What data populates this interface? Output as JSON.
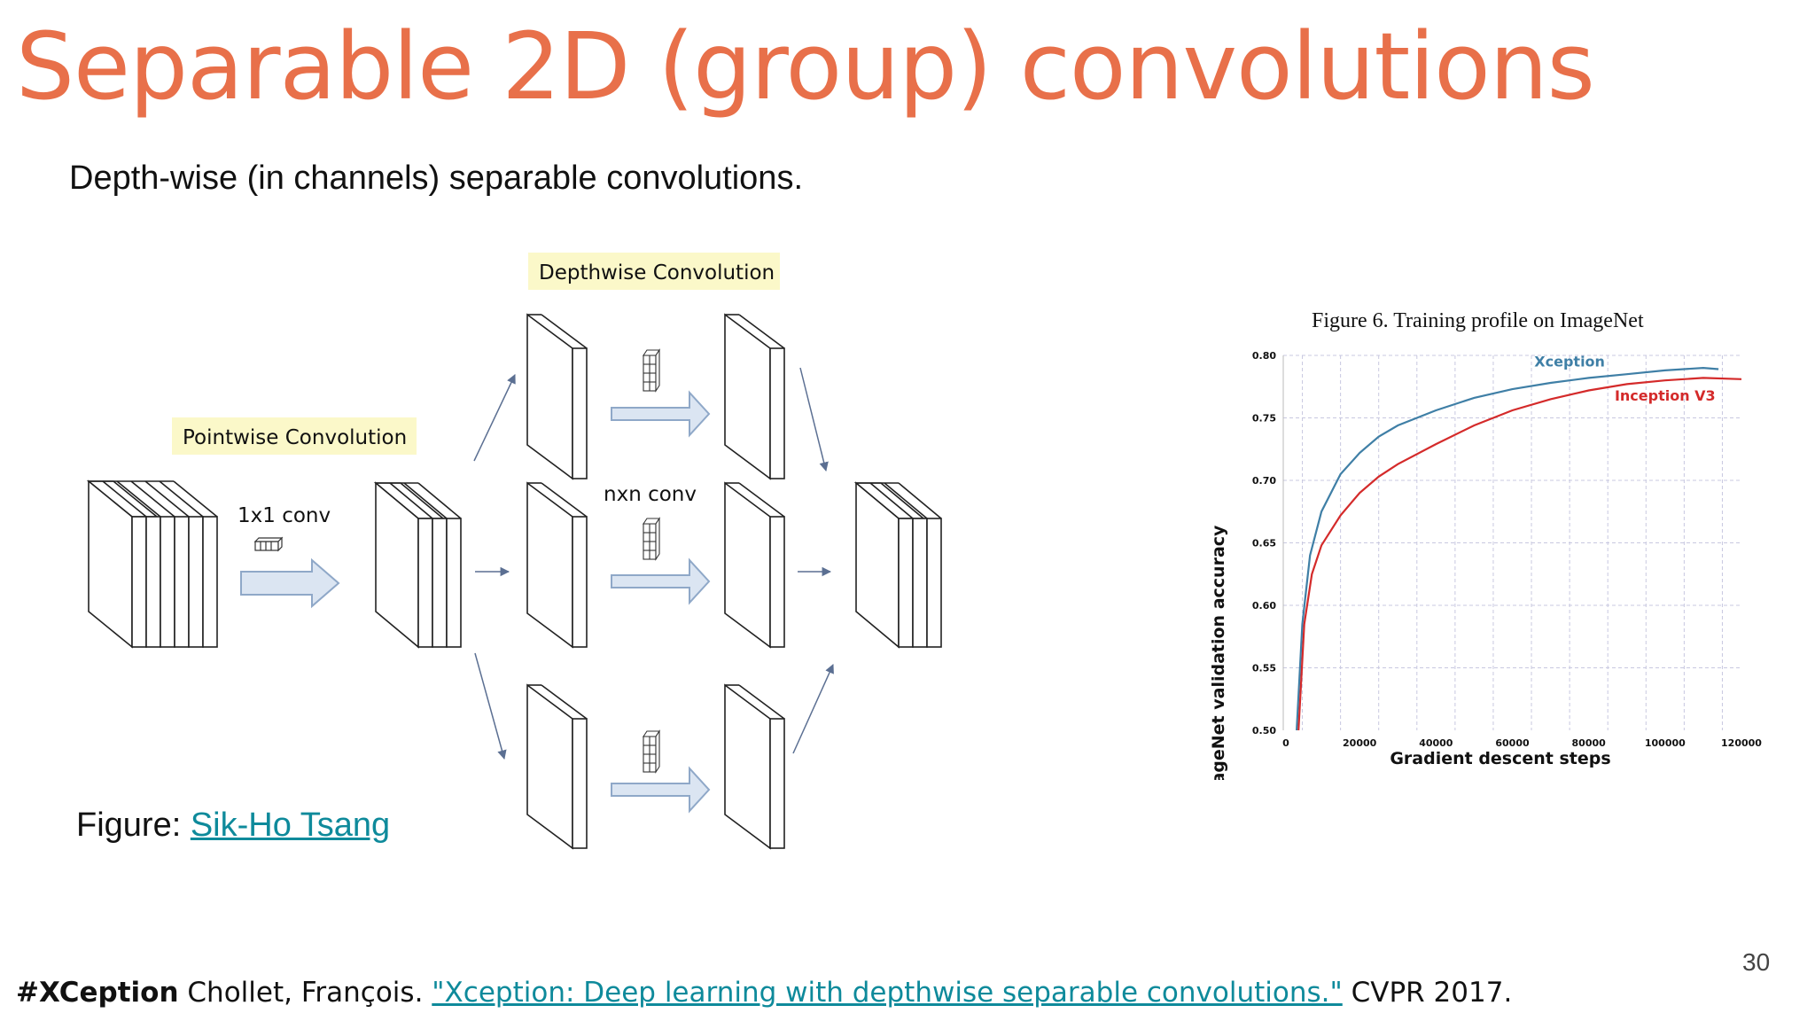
{
  "slide": {
    "title": "Separable 2D (group) convolutions",
    "subtitle": "Depth-wise (in channels) separable convolutions.",
    "page_number": "30"
  },
  "diagram": {
    "pointwise_label": "Pointwise Convolution",
    "depthwise_label": "Depthwise Convolution",
    "pointwise_kernel_label": "1x1 conv",
    "depthwise_kernel_label": "nxn conv",
    "colors": {
      "label_bg": "#fbf8c9",
      "arrow_fill": "#dbe5f2",
      "arrow_stroke": "#8fa8c8",
      "line": "#5b6f92"
    }
  },
  "figure_credit": {
    "prefix": "Figure: ",
    "link_text": "Sik-Ho Tsang"
  },
  "citation": {
    "tag": "#XCeption",
    "authors": " Chollet, François. ",
    "link_text": "\"Xception: Deep learning with depthwise separable convolutions.\"",
    "venue": " CVPR 2017."
  },
  "chart_data": {
    "type": "line",
    "title": "Figure 6. Training profile on ImageNet",
    "xlabel": "Gradient descent steps",
    "ylabel": "ImageNet validation accuracy",
    "xlim": [
      0,
      120000
    ],
    "ylim": [
      0.5,
      0.8
    ],
    "xticks": [
      0,
      20000,
      40000,
      60000,
      80000,
      100000,
      120000
    ],
    "xtick_labels": [
      "0",
      "20000",
      "40000",
      "60000",
      "80000",
      "100000",
      "120000"
    ],
    "yticks": [
      0.5,
      0.55,
      0.6,
      0.65,
      0.7,
      0.75,
      0.8
    ],
    "ytick_labels": [
      "0.50",
      "0.55",
      "0.60",
      "0.65",
      "0.70",
      "0.75",
      "0.80"
    ],
    "grid": true,
    "series": [
      {
        "name": "Xception",
        "color": "#3f7fa6",
        "x": [
          3500,
          5000,
          7000,
          10000,
          15000,
          20000,
          25000,
          30000,
          40000,
          50000,
          60000,
          70000,
          80000,
          90000,
          100000,
          110000,
          114000
        ],
        "y": [
          0.5,
          0.585,
          0.64,
          0.675,
          0.705,
          0.722,
          0.735,
          0.744,
          0.756,
          0.766,
          0.773,
          0.778,
          0.782,
          0.785,
          0.788,
          0.79,
          0.789
        ]
      },
      {
        "name": "Inception V3",
        "color": "#d42a2a",
        "x": [
          4000,
          5500,
          7500,
          10000,
          15000,
          20000,
          25000,
          30000,
          40000,
          50000,
          60000,
          70000,
          80000,
          90000,
          100000,
          110000,
          120000
        ],
        "y": [
          0.5,
          0.585,
          0.625,
          0.648,
          0.672,
          0.69,
          0.703,
          0.713,
          0.729,
          0.744,
          0.756,
          0.765,
          0.772,
          0.777,
          0.78,
          0.782,
          0.781
        ]
      }
    ]
  }
}
